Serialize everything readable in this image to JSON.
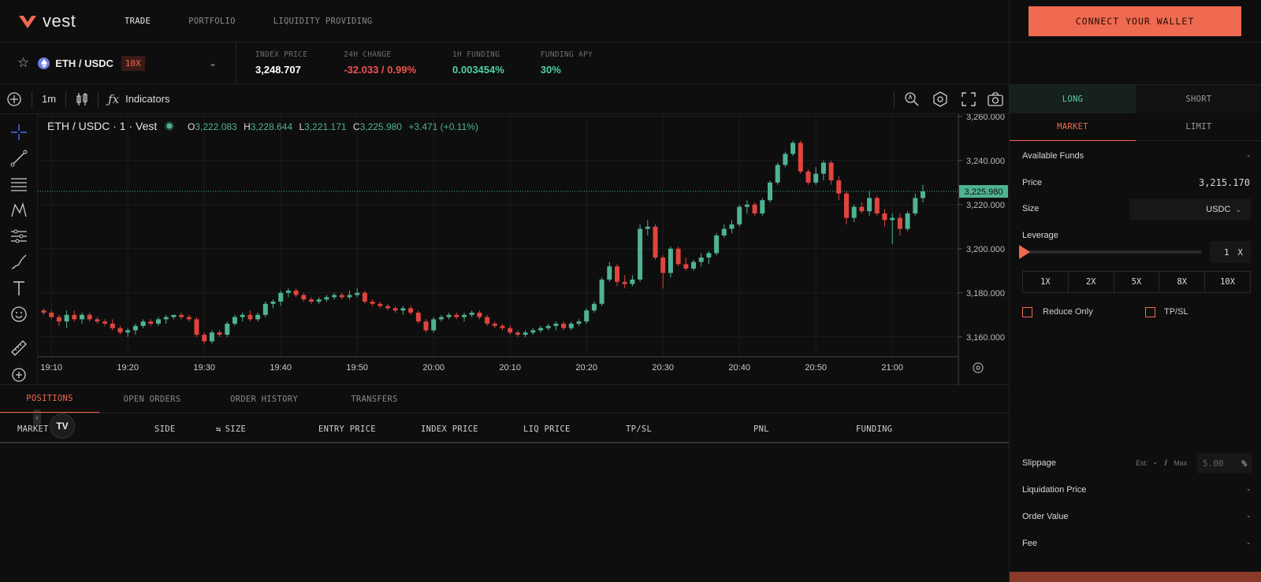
{
  "brand": {
    "name": "vest",
    "accent": "#ef6a50"
  },
  "nav": {
    "items": [
      "TRADE",
      "PORTFOLIO",
      "LIQUIDITY PROVIDING"
    ],
    "active": "TRADE"
  },
  "wallet": {
    "connect_label": "CONNECT YOUR WALLET"
  },
  "market": {
    "pair": "ETH / USDC",
    "leverage_badge": "10X",
    "stats": [
      {
        "label": "INDEX PRICE",
        "value": "3,248.707",
        "color": "#ffffff"
      },
      {
        "label": "24H CHANGE",
        "value": "-32.033 / 0.99%",
        "color": "#ef5350"
      },
      {
        "label": "1H FUNDING",
        "value": "0.003454%",
        "color": "#4fd1a5"
      },
      {
        "label": "FUNDING APY",
        "value": "30%",
        "color": "#4fd1a5"
      }
    ]
  },
  "chart_toolbar": {
    "interval": "1m",
    "indicators_label": "Indicators"
  },
  "chart_legend": {
    "symbol": "ETH / USDC · 1 · Vest",
    "o_label": "O",
    "o": "3,222.083",
    "h_label": "H",
    "h": "3,228.644",
    "l_label": "L",
    "l": "3,221.171",
    "c_label": "C",
    "c": "3,225.980",
    "change": "+3.471 (+0.11%)"
  },
  "chart_data": {
    "type": "candlestick",
    "ylim": [
      3151,
      3261
    ],
    "yticks": [
      {
        "value": 3160,
        "label": "3,160.000"
      },
      {
        "value": 3180,
        "label": "3,180.000"
      },
      {
        "value": 3200,
        "label": "3,200.000"
      },
      {
        "value": 3220,
        "label": "3,220.000"
      },
      {
        "value": 3240,
        "label": "3,240.000"
      },
      {
        "value": 3260,
        "label": "3,260.000"
      }
    ],
    "xticks": [
      "19:10",
      "19:20",
      "19:30",
      "19:40",
      "19:50",
      "20:00",
      "20:10",
      "20:20",
      "20:30",
      "20:40",
      "20:50",
      "21:00"
    ],
    "xtick_candle_index": [
      1,
      11,
      21,
      31,
      41,
      51,
      61,
      71,
      81,
      91,
      101,
      111
    ],
    "current_price": 3225.98,
    "current_price_label": "3,225.980",
    "up_color": "#4fb393",
    "down_color": "#e0443e",
    "candles": [
      [
        3172,
        3173,
        3170,
        3171
      ],
      [
        3171,
        3172,
        3168,
        3169
      ],
      [
        3169,
        3170,
        3165,
        3167
      ],
      [
        3167,
        3172,
        3164,
        3170
      ],
      [
        3170,
        3172,
        3167,
        3168
      ],
      [
        3168,
        3171,
        3166,
        3170
      ],
      [
        3170,
        3171,
        3167,
        3168
      ],
      [
        3168,
        3169,
        3166,
        3167
      ],
      [
        3167,
        3168,
        3165,
        3166
      ],
      [
        3166,
        3168,
        3163,
        3164
      ],
      [
        3164,
        3165,
        3161,
        3162
      ],
      [
        3162,
        3164,
        3160,
        3163
      ],
      [
        3163,
        3166,
        3161,
        3165
      ],
      [
        3165,
        3168,
        3164,
        3167
      ],
      [
        3167,
        3168,
        3165,
        3166
      ],
      [
        3166,
        3169,
        3165,
        3168
      ],
      [
        3168,
        3170,
        3166,
        3169
      ],
      [
        3169,
        3170,
        3168,
        3170
      ],
      [
        3170,
        3171,
        3168,
        3169
      ],
      [
        3169,
        3170,
        3167,
        3168
      ],
      [
        3168,
        3169,
        3160,
        3161
      ],
      [
        3161,
        3162,
        3157,
        3158
      ],
      [
        3158,
        3163,
        3157,
        3162
      ],
      [
        3162,
        3163,
        3160,
        3161
      ],
      [
        3161,
        3167,
        3160,
        3166
      ],
      [
        3166,
        3170,
        3165,
        3169
      ],
      [
        3169,
        3171,
        3167,
        3170
      ],
      [
        3170,
        3172,
        3167,
        3168
      ],
      [
        3168,
        3171,
        3167,
        3170
      ],
      [
        3170,
        3176,
        3169,
        3175
      ],
      [
        3175,
        3177,
        3173,
        3176
      ],
      [
        3176,
        3181,
        3174,
        3180
      ],
      [
        3180,
        3182,
        3178,
        3181
      ],
      [
        3181,
        3182,
        3178,
        3179
      ],
      [
        3179,
        3180,
        3176,
        3177
      ],
      [
        3177,
        3178,
        3175,
        3176
      ],
      [
        3176,
        3178,
        3175,
        3177
      ],
      [
        3177,
        3179,
        3176,
        3178
      ],
      [
        3178,
        3180,
        3177,
        3179
      ],
      [
        3179,
        3180,
        3177,
        3178
      ],
      [
        3178,
        3181,
        3177,
        3179
      ],
      [
        3179,
        3182,
        3178,
        3180
      ],
      [
        3180,
        3181,
        3175,
        3176
      ],
      [
        3176,
        3177,
        3174,
        3175
      ],
      [
        3175,
        3176,
        3173,
        3174
      ],
      [
        3174,
        3175,
        3172,
        3173
      ],
      [
        3173,
        3174,
        3171,
        3172
      ],
      [
        3172,
        3174,
        3170,
        3173
      ],
      [
        3173,
        3174,
        3170,
        3171
      ],
      [
        3171,
        3172,
        3166,
        3167
      ],
      [
        3167,
        3168,
        3162,
        3163
      ],
      [
        3163,
        3169,
        3162,
        3168
      ],
      [
        3168,
        3170,
        3167,
        3169
      ],
      [
        3169,
        3171,
        3168,
        3170
      ],
      [
        3170,
        3171,
        3168,
        3169
      ],
      [
        3169,
        3171,
        3167,
        3170
      ],
      [
        3170,
        3172,
        3169,
        3171
      ],
      [
        3171,
        3172,
        3168,
        3169
      ],
      [
        3169,
        3170,
        3165,
        3166
      ],
      [
        3166,
        3167,
        3164,
        3165
      ],
      [
        3165,
        3166,
        3163,
        3164
      ],
      [
        3164,
        3165,
        3161,
        3162
      ],
      [
        3162,
        3163,
        3160,
        3161
      ],
      [
        3161,
        3163,
        3160,
        3162
      ],
      [
        3162,
        3164,
        3161,
        3163
      ],
      [
        3163,
        3165,
        3162,
        3164
      ],
      [
        3164,
        3166,
        3163,
        3165
      ],
      [
        3165,
        3167,
        3163,
        3166
      ],
      [
        3166,
        3167,
        3163,
        3164
      ],
      [
        3164,
        3167,
        3163,
        3166
      ],
      [
        3166,
        3168,
        3165,
        3167
      ],
      [
        3167,
        3173,
        3166,
        3172
      ],
      [
        3172,
        3176,
        3171,
        3175
      ],
      [
        3175,
        3187,
        3174,
        3186
      ],
      [
        3186,
        3194,
        3185,
        3192
      ],
      [
        3192,
        3193,
        3183,
        3185
      ],
      [
        3185,
        3188,
        3182,
        3184
      ],
      [
        3184,
        3188,
        3183,
        3186
      ],
      [
        3186,
        3211,
        3185,
        3209
      ],
      [
        3209,
        3213,
        3206,
        3210
      ],
      [
        3210,
        3211,
        3195,
        3196
      ],
      [
        3196,
        3197,
        3182,
        3189
      ],
      [
        3189,
        3201,
        3187,
        3200
      ],
      [
        3200,
        3201,
        3192,
        3193
      ],
      [
        3193,
        3196,
        3190,
        3191
      ],
      [
        3191,
        3195,
        3190,
        3194
      ],
      [
        3194,
        3198,
        3192,
        3196
      ],
      [
        3196,
        3199,
        3193,
        3198
      ],
      [
        3198,
        3207,
        3197,
        3206
      ],
      [
        3206,
        3211,
        3205,
        3209
      ],
      [
        3209,
        3213,
        3207,
        3211
      ],
      [
        3211,
        3220,
        3210,
        3219
      ],
      [
        3219,
        3222,
        3216,
        3220
      ],
      [
        3220,
        3221,
        3215,
        3216
      ],
      [
        3216,
        3223,
        3215,
        3222
      ],
      [
        3222,
        3231,
        3221,
        3230
      ],
      [
        3230,
        3239,
        3229,
        3238
      ],
      [
        3238,
        3244,
        3237,
        3243
      ],
      [
        3243,
        3249,
        3242,
        3248
      ],
      [
        3248,
        3249,
        3234,
        3235
      ],
      [
        3235,
        3236,
        3229,
        3230
      ],
      [
        3230,
        3237,
        3229,
        3234
      ],
      [
        3234,
        3240,
        3231,
        3239
      ],
      [
        3239,
        3240,
        3229,
        3231
      ],
      [
        3231,
        3233,
        3222,
        3225
      ],
      [
        3225,
        3226,
        3211,
        3214
      ],
      [
        3214,
        3220,
        3212,
        3219
      ],
      [
        3219,
        3221,
        3216,
        3217
      ],
      [
        3217,
        3226,
        3215,
        3223
      ],
      [
        3223,
        3224,
        3215,
        3216
      ],
      [
        3216,
        3218,
        3210,
        3213
      ],
      [
        3213,
        3216,
        3202,
        3214
      ],
      [
        3214,
        3216,
        3206,
        3209
      ],
      [
        3209,
        3217,
        3208,
        3216
      ],
      [
        3216,
        3225,
        3215,
        3223
      ],
      [
        3223,
        3229,
        3221,
        3226
      ]
    ]
  },
  "positions": {
    "tabs": [
      "POSITIONS",
      "OPEN ORDERS",
      "ORDER HISTORY",
      "TRANSFERS"
    ],
    "active_tab": "POSITIONS",
    "columns": [
      "MARKET",
      "SIDE",
      "SIZE",
      "ENTRY PRICE",
      "INDEX PRICE",
      "LIQ PRICE",
      "TP/SL",
      "PNL",
      "FUNDING"
    ]
  },
  "order": {
    "side_tabs": [
      "LONG",
      "SHORT"
    ],
    "active_side": "LONG",
    "type_tabs": [
      "MARKET",
      "LIMIT"
    ],
    "active_type": "MARKET",
    "available_funds_label": "Available Funds",
    "available_funds_value": "-",
    "price_label": "Price",
    "price_value": "3,215.170",
    "size_label": "Size",
    "size_unit": "USDC",
    "leverage_label": "Leverage",
    "leverage_value": "1",
    "leverage_unit": "X",
    "leverage_presets": [
      "1X",
      "2X",
      "5X",
      "8X",
      "10X"
    ],
    "reduce_only_label": "Reduce Only",
    "tpsl_label": "TP/SL",
    "slippage_label": "Slippage",
    "slippage_est_label": "Est:",
    "slippage_est_value": "-",
    "slippage_sep": "/",
    "slippage_max_label": "Max",
    "slippage_max_placeholder": "5.00",
    "slippage_unit": "%",
    "liq_price_label": "Liquidation Price",
    "liq_price_value": "-",
    "order_value_label": "Order Value",
    "order_value_value": "-",
    "fee_label": "Fee",
    "fee_value": "-"
  }
}
